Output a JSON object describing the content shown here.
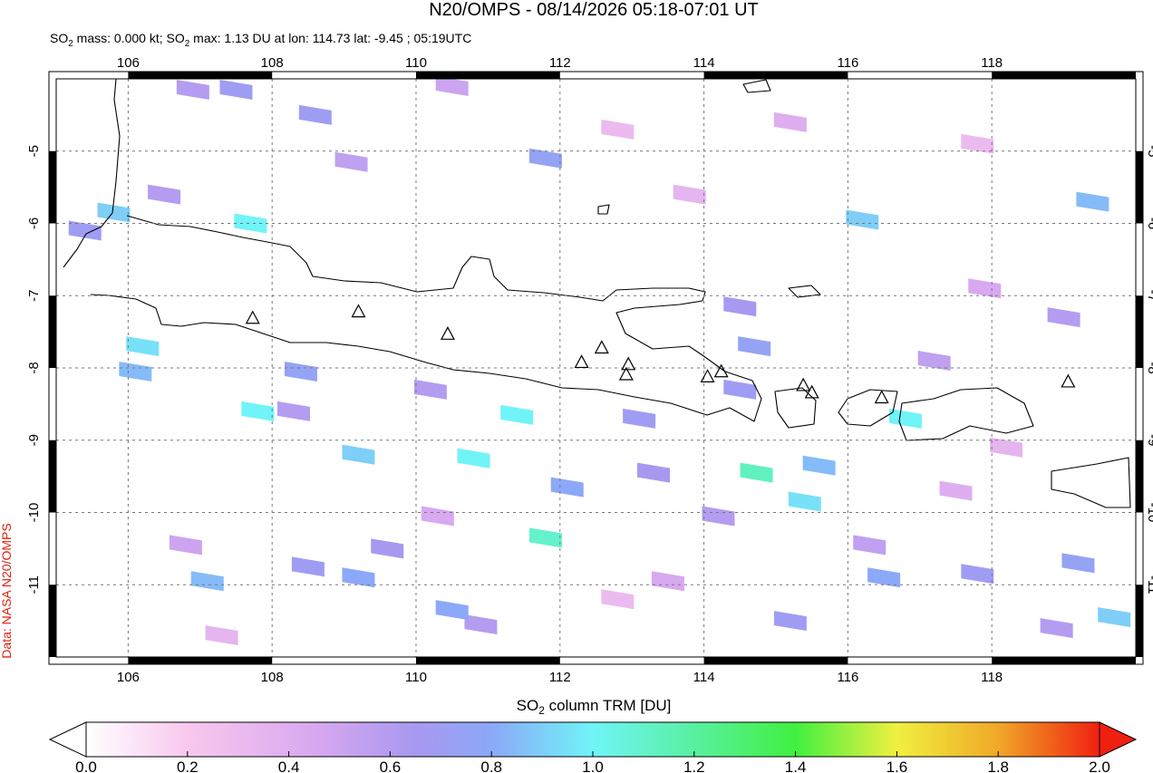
{
  "chart_data": {
    "type": "map",
    "title": "N20/OMPS - 08/14/2026 05:18-07:01 UT",
    "subtitle": [
      "SO",
      "2",
      " mass: 0.000 kt; SO",
      "2",
      " max: 1.13 DU at lon: 114.73 lat: -9.45 ; 05:19UTC"
    ],
    "credit": "Data: NASA N20/OMPS",
    "xlim": [
      105,
      120
    ],
    "ylim": [
      -12,
      -4
    ],
    "xticks": [
      106,
      108,
      110,
      112,
      114,
      116,
      118
    ],
    "yticks": [
      -5,
      -6,
      -7,
      -8,
      -9,
      -10,
      -11
    ],
    "grid": true,
    "colorbar_label": [
      "SO",
      "2",
      " column TRM [DU]"
    ],
    "colorbar_lim": [
      0,
      2
    ],
    "colorbar_ticks": [
      {
        "value": 0,
        "label": "0.0"
      },
      {
        "value": 0.2,
        "label": "0.2"
      },
      {
        "value": 0.4,
        "label": "0.4"
      },
      {
        "value": 0.6,
        "label": "0.6"
      },
      {
        "value": 0.8,
        "label": "0.8"
      },
      {
        "value": 1,
        "label": "1.0"
      },
      {
        "value": 1.2,
        "label": "1.2"
      },
      {
        "value": 1.4,
        "label": "1.4"
      },
      {
        "value": 1.6,
        "label": "1.6"
      },
      {
        "value": 1.8,
        "label": "1.8"
      },
      {
        "value": 2,
        "label": "2.0"
      }
    ],
    "colormap": [
      {
        "value": 0,
        "color": "#ffffff"
      },
      {
        "value": 0.2,
        "color": "#f8c8ee"
      },
      {
        "value": 0.45,
        "color": "#d8a8f0"
      },
      {
        "value": 0.65,
        "color": "#a898f0"
      },
      {
        "value": 0.8,
        "color": "#8ca8f8"
      },
      {
        "value": 1,
        "color": "#70f4f8"
      },
      {
        "value": 1.2,
        "color": "#58f0a0"
      },
      {
        "value": 1.4,
        "color": "#40f040"
      },
      {
        "value": 1.6,
        "color": "#f0f040"
      },
      {
        "value": 1.8,
        "color": "#f0a828"
      },
      {
        "value": 2,
        "color": "#f02010"
      }
    ],
    "pixels": [
      {
        "lon": 106.9,
        "lat": -4.15,
        "value": 0.6
      },
      {
        "lon": 107.5,
        "lat": -4.15,
        "value": 0.7
      },
      {
        "lon": 108.6,
        "lat": -4.5,
        "value": 0.7
      },
      {
        "lon": 110.5,
        "lat": -4.1,
        "value": 0.5
      },
      {
        "lon": 111.8,
        "lat": -5.1,
        "value": 0.75
      },
      {
        "lon": 109.1,
        "lat": -5.15,
        "value": 0.55
      },
      {
        "lon": 105.4,
        "lat": -6.1,
        "value": 0.7
      },
      {
        "lon": 105.8,
        "lat": -5.85,
        "value": 0.9
      },
      {
        "lon": 107.7,
        "lat": -6.0,
        "value": 1.0
      },
      {
        "lon": 106.5,
        "lat": -5.6,
        "value": 0.6
      },
      {
        "lon": 116.2,
        "lat": -5.95,
        "value": 0.9
      },
      {
        "lon": 119.4,
        "lat": -5.7,
        "value": 0.85
      },
      {
        "lon": 106.2,
        "lat": -7.7,
        "value": 0.95
      },
      {
        "lon": 106.1,
        "lat": -8.05,
        "value": 0.85
      },
      {
        "lon": 108.4,
        "lat": -8.05,
        "value": 0.75
      },
      {
        "lon": 107.8,
        "lat": -8.6,
        "value": 1.0
      },
      {
        "lon": 108.3,
        "lat": -8.6,
        "value": 0.6
      },
      {
        "lon": 110.2,
        "lat": -8.3,
        "value": 0.6
      },
      {
        "lon": 111.4,
        "lat": -8.65,
        "value": 1.0
      },
      {
        "lon": 113.1,
        "lat": -8.7,
        "value": 0.7
      },
      {
        "lon": 114.5,
        "lat": -7.15,
        "value": 0.65
      },
      {
        "lon": 114.7,
        "lat": -7.7,
        "value": 0.75
      },
      {
        "lon": 114.5,
        "lat": -8.3,
        "value": 0.7
      },
      {
        "lon": 116.8,
        "lat": -8.7,
        "value": 1.0
      },
      {
        "lon": 117.2,
        "lat": -7.9,
        "value": 0.55
      },
      {
        "lon": 119.0,
        "lat": -7.3,
        "value": 0.6
      },
      {
        "lon": 117.9,
        "lat": -6.9,
        "value": 0.45
      },
      {
        "lon": 109.2,
        "lat": -9.2,
        "value": 0.9
      },
      {
        "lon": 110.8,
        "lat": -9.25,
        "value": 1.0
      },
      {
        "lon": 112.1,
        "lat": -9.65,
        "value": 0.8
      },
      {
        "lon": 113.3,
        "lat": -9.45,
        "value": 0.65
      },
      {
        "lon": 114.73,
        "lat": -9.45,
        "value": 1.13
      },
      {
        "lon": 115.6,
        "lat": -9.35,
        "value": 0.85
      },
      {
        "lon": 115.4,
        "lat": -9.85,
        "value": 0.95
      },
      {
        "lon": 114.2,
        "lat": -10.05,
        "value": 0.6
      },
      {
        "lon": 116.3,
        "lat": -10.45,
        "value": 0.55
      },
      {
        "lon": 111.8,
        "lat": -10.35,
        "value": 1.1
      },
      {
        "lon": 110.3,
        "lat": -10.05,
        "value": 0.45
      },
      {
        "lon": 109.6,
        "lat": -10.5,
        "value": 0.65
      },
      {
        "lon": 108.5,
        "lat": -10.75,
        "value": 0.7
      },
      {
        "lon": 109.2,
        "lat": -10.9,
        "value": 0.8
      },
      {
        "lon": 107.1,
        "lat": -10.95,
        "value": 0.85
      },
      {
        "lon": 106.8,
        "lat": -10.45,
        "value": 0.5
      },
      {
        "lon": 110.9,
        "lat": -11.55,
        "value": 0.6
      },
      {
        "lon": 110.5,
        "lat": -11.35,
        "value": 0.8
      },
      {
        "lon": 113.5,
        "lat": -10.95,
        "value": 0.45
      },
      {
        "lon": 115.2,
        "lat": -11.5,
        "value": 0.7
      },
      {
        "lon": 116.5,
        "lat": -10.9,
        "value": 0.8
      },
      {
        "lon": 117.8,
        "lat": -10.85,
        "value": 0.7
      },
      {
        "lon": 119.2,
        "lat": -10.7,
        "value": 0.75
      },
      {
        "lon": 119.7,
        "lat": -11.45,
        "value": 0.9
      },
      {
        "lon": 118.9,
        "lat": -11.6,
        "value": 0.6
      },
      {
        "lon": 107.3,
        "lat": -11.7,
        "value": 0.35
      },
      {
        "lon": 112.8,
        "lat": -11.2,
        "value": 0.3
      },
      {
        "lon": 117.5,
        "lat": -9.7,
        "value": 0.4
      },
      {
        "lon": 118.2,
        "lat": -9.1,
        "value": 0.35
      },
      {
        "lon": 113.8,
        "lat": -5.6,
        "value": 0.35
      },
      {
        "lon": 112.8,
        "lat": -4.7,
        "value": 0.3
      },
      {
        "lon": 115.2,
        "lat": -4.6,
        "value": 0.4
      },
      {
        "lon": 117.8,
        "lat": -4.9,
        "value": 0.3
      }
    ],
    "volcanoes": [
      {
        "lon": 107.73,
        "lat": -7.32
      },
      {
        "lon": 109.2,
        "lat": -7.23
      },
      {
        "lon": 110.44,
        "lat": -7.54
      },
      {
        "lon": 112.3,
        "lat": -7.93
      },
      {
        "lon": 112.58,
        "lat": -7.73
      },
      {
        "lon": 112.92,
        "lat": -8.1
      },
      {
        "lon": 112.95,
        "lat": -7.96
      },
      {
        "lon": 114.05,
        "lat": -8.13
      },
      {
        "lon": 114.24,
        "lat": -8.06
      },
      {
        "lon": 115.38,
        "lat": -8.25
      },
      {
        "lon": 115.5,
        "lat": -8.35
      },
      {
        "lon": 116.47,
        "lat": -8.42
      },
      {
        "lon": 119.06,
        "lat": -8.2
      }
    ]
  }
}
